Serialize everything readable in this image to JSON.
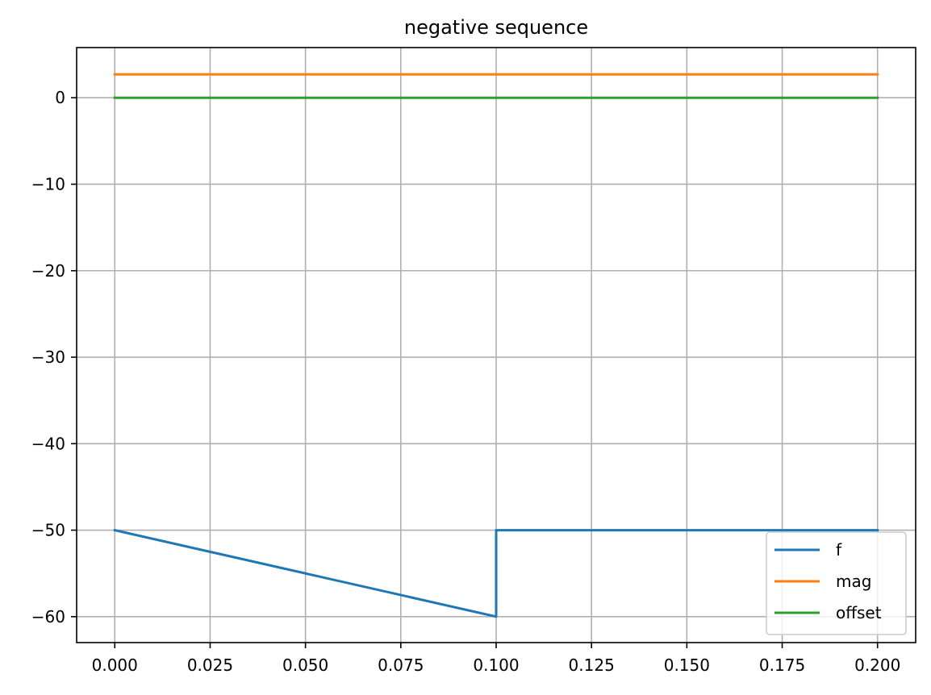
{
  "chart_data": {
    "type": "line",
    "title": "negative sequence",
    "xlabel": "",
    "ylabel": "",
    "xlim": [
      -0.01,
      0.21
    ],
    "ylim": [
      -63,
      5.8
    ],
    "x_ticks": [
      0.0,
      0.025,
      0.05,
      0.075,
      0.1,
      0.125,
      0.15,
      0.175,
      0.2
    ],
    "x_tick_labels": [
      "0.000",
      "0.025",
      "0.050",
      "0.075",
      "0.100",
      "0.125",
      "0.150",
      "0.175",
      "0.200"
    ],
    "y_ticks": [
      0,
      -10,
      -20,
      -30,
      -40,
      -50,
      -60
    ],
    "y_tick_labels": [
      "0",
      "−10",
      "−20",
      "−30",
      "−40",
      "−50",
      "−60"
    ],
    "grid": true,
    "legend_position": "lower-right",
    "series": [
      {
        "name": "f",
        "color": "#1f77b4",
        "x": [
          0.0,
          0.1,
          0.1,
          0.2
        ],
        "y": [
          -50,
          -60,
          -50,
          -50
        ]
      },
      {
        "name": "mag",
        "color": "#ff7f0e",
        "x": [
          0.0,
          0.2
        ],
        "y": [
          2.7,
          2.7
        ]
      },
      {
        "name": "offset",
        "color": "#2ca02c",
        "x": [
          0.0,
          0.2
        ],
        "y": [
          0,
          0
        ]
      }
    ]
  }
}
